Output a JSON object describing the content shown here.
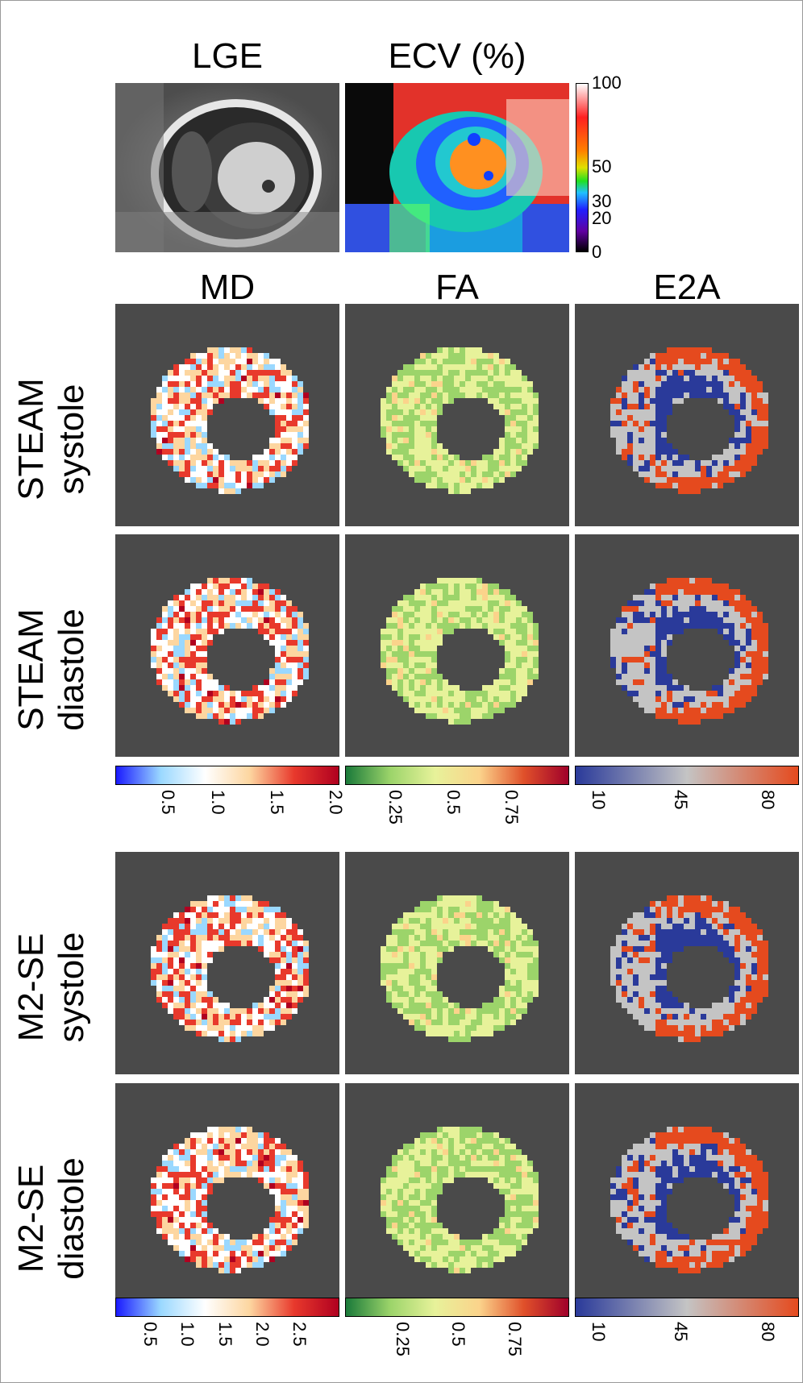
{
  "top": {
    "lge_title": "LGE",
    "ecv_title": "ECV (%)",
    "ecv_colorbar_ticks": [
      "100",
      "50",
      "30",
      "20",
      "0"
    ]
  },
  "columns": [
    "MD",
    "FA",
    "E2A"
  ],
  "rows": [
    {
      "line1": "STEAM",
      "line2": "systole"
    },
    {
      "line1": "STEAM",
      "line2": "diastole"
    },
    {
      "line1": "M2-SE",
      "line2": "systole"
    },
    {
      "line1": "M2-SE",
      "line2": "diastole"
    }
  ],
  "colorbars_steam": {
    "md_ticks": [
      "0.5",
      "1.0",
      "1.5",
      "2.0"
    ],
    "fa_ticks": [
      "0.25",
      "0.5",
      "0.75"
    ],
    "e2a_ticks": [
      "10",
      "45",
      "80"
    ]
  },
  "colorbars_m2se": {
    "md_ticks": [
      "0.5",
      "1.0",
      "1.5",
      "2.0",
      "2.5"
    ],
    "fa_ticks": [
      "0.25",
      "0.5",
      "0.75"
    ],
    "e2a_ticks": [
      "10",
      "45",
      "80"
    ]
  },
  "colors": {
    "panel_bg": "#4a4a4a",
    "md_scale": [
      "#1a1aff",
      "#9ad8ff",
      "#ffffff",
      "#fdd6a0",
      "#e8392c",
      "#b00020"
    ],
    "fa_scale": [
      "#1a7a3a",
      "#9cd46a",
      "#e7f29a",
      "#fbd38b",
      "#e0502a",
      "#a0002a"
    ],
    "e2a_scale": [
      "#2a3a9a",
      "#c4c4c4",
      "#e54a1e"
    ]
  }
}
